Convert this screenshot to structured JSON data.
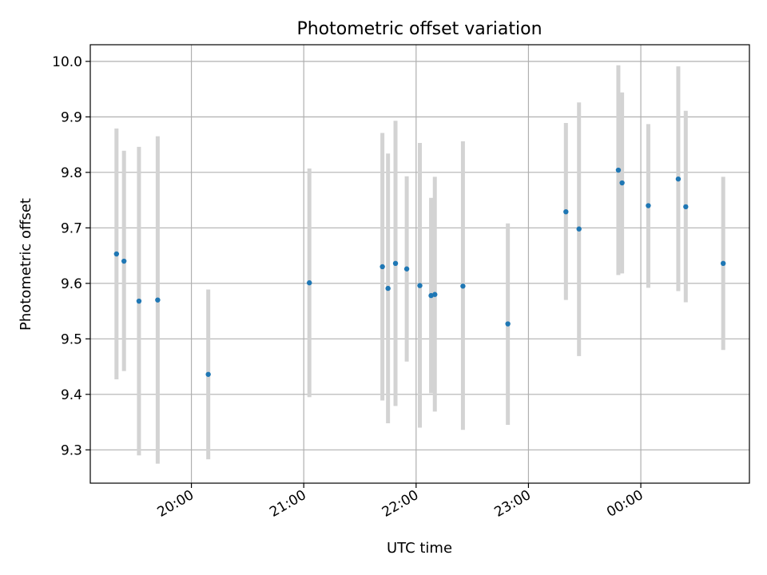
{
  "chart_data": {
    "type": "scatter",
    "title": "Photometric offset variation",
    "xlabel": "UTC time",
    "ylabel": "Photometric offset",
    "x_ticks": [
      "20:00",
      "21:00",
      "22:00",
      "23:00",
      "00:00"
    ],
    "y_ticks": [
      "9.3",
      "9.4",
      "9.5",
      "9.6",
      "9.7",
      "9.8",
      "9.9",
      "10.0"
    ],
    "xlim": [
      "19:06",
      "00:58"
    ],
    "ylim": [
      9.24,
      10.03
    ],
    "grid": true,
    "colors": {
      "points": "#1f77b4",
      "error_bars": "#d3d3d3",
      "grid": "#b0b0b0"
    },
    "points": [
      {
        "time": "19:20",
        "y": 9.653,
        "low": 9.427,
        "high": 9.879
      },
      {
        "time": "19:24",
        "y": 9.64,
        "low": 9.442,
        "high": 9.839
      },
      {
        "time": "19:32",
        "y": 9.568,
        "low": 9.29,
        "high": 9.846
      },
      {
        "time": "19:42",
        "y": 9.57,
        "low": 9.275,
        "high": 9.865
      },
      {
        "time": "20:09",
        "y": 9.436,
        "low": 9.283,
        "high": 9.589
      },
      {
        "time": "21:03",
        "y": 9.601,
        "low": 9.395,
        "high": 9.807
      },
      {
        "time": "21:42",
        "y": 9.63,
        "low": 9.389,
        "high": 9.871
      },
      {
        "time": "21:45",
        "y": 9.591,
        "low": 9.348,
        "high": 9.834
      },
      {
        "time": "21:49",
        "y": 9.636,
        "low": 9.379,
        "high": 9.893
      },
      {
        "time": "21:55",
        "y": 9.626,
        "low": 9.459,
        "high": 9.793
      },
      {
        "time": "22:02",
        "y": 9.596,
        "low": 9.34,
        "high": 9.853
      },
      {
        "time": "22:08",
        "y": 9.578,
        "low": 9.402,
        "high": 9.754
      },
      {
        "time": "22:10",
        "y": 9.58,
        "low": 9.369,
        "high": 9.792
      },
      {
        "time": "22:25",
        "y": 9.595,
        "low": 9.336,
        "high": 9.856
      },
      {
        "time": "22:49",
        "y": 9.527,
        "low": 9.345,
        "high": 9.708
      },
      {
        "time": "23:20",
        "y": 9.729,
        "low": 9.57,
        "high": 9.889
      },
      {
        "time": "23:27",
        "y": 9.698,
        "low": 9.469,
        "high": 9.926
      },
      {
        "time": "23:48",
        "y": 9.804,
        "low": 9.615,
        "high": 9.993
      },
      {
        "time": "23:50",
        "y": 9.781,
        "low": 9.618,
        "high": 9.944
      },
      {
        "time": "00:04",
        "y": 9.74,
        "low": 9.592,
        "high": 9.887
      },
      {
        "time": "00:20",
        "y": 9.788,
        "low": 9.586,
        "high": 9.991
      },
      {
        "time": "00:24",
        "y": 9.738,
        "low": 9.566,
        "high": 9.911
      },
      {
        "time": "00:44",
        "y": 9.636,
        "low": 9.48,
        "high": 9.792
      }
    ]
  }
}
